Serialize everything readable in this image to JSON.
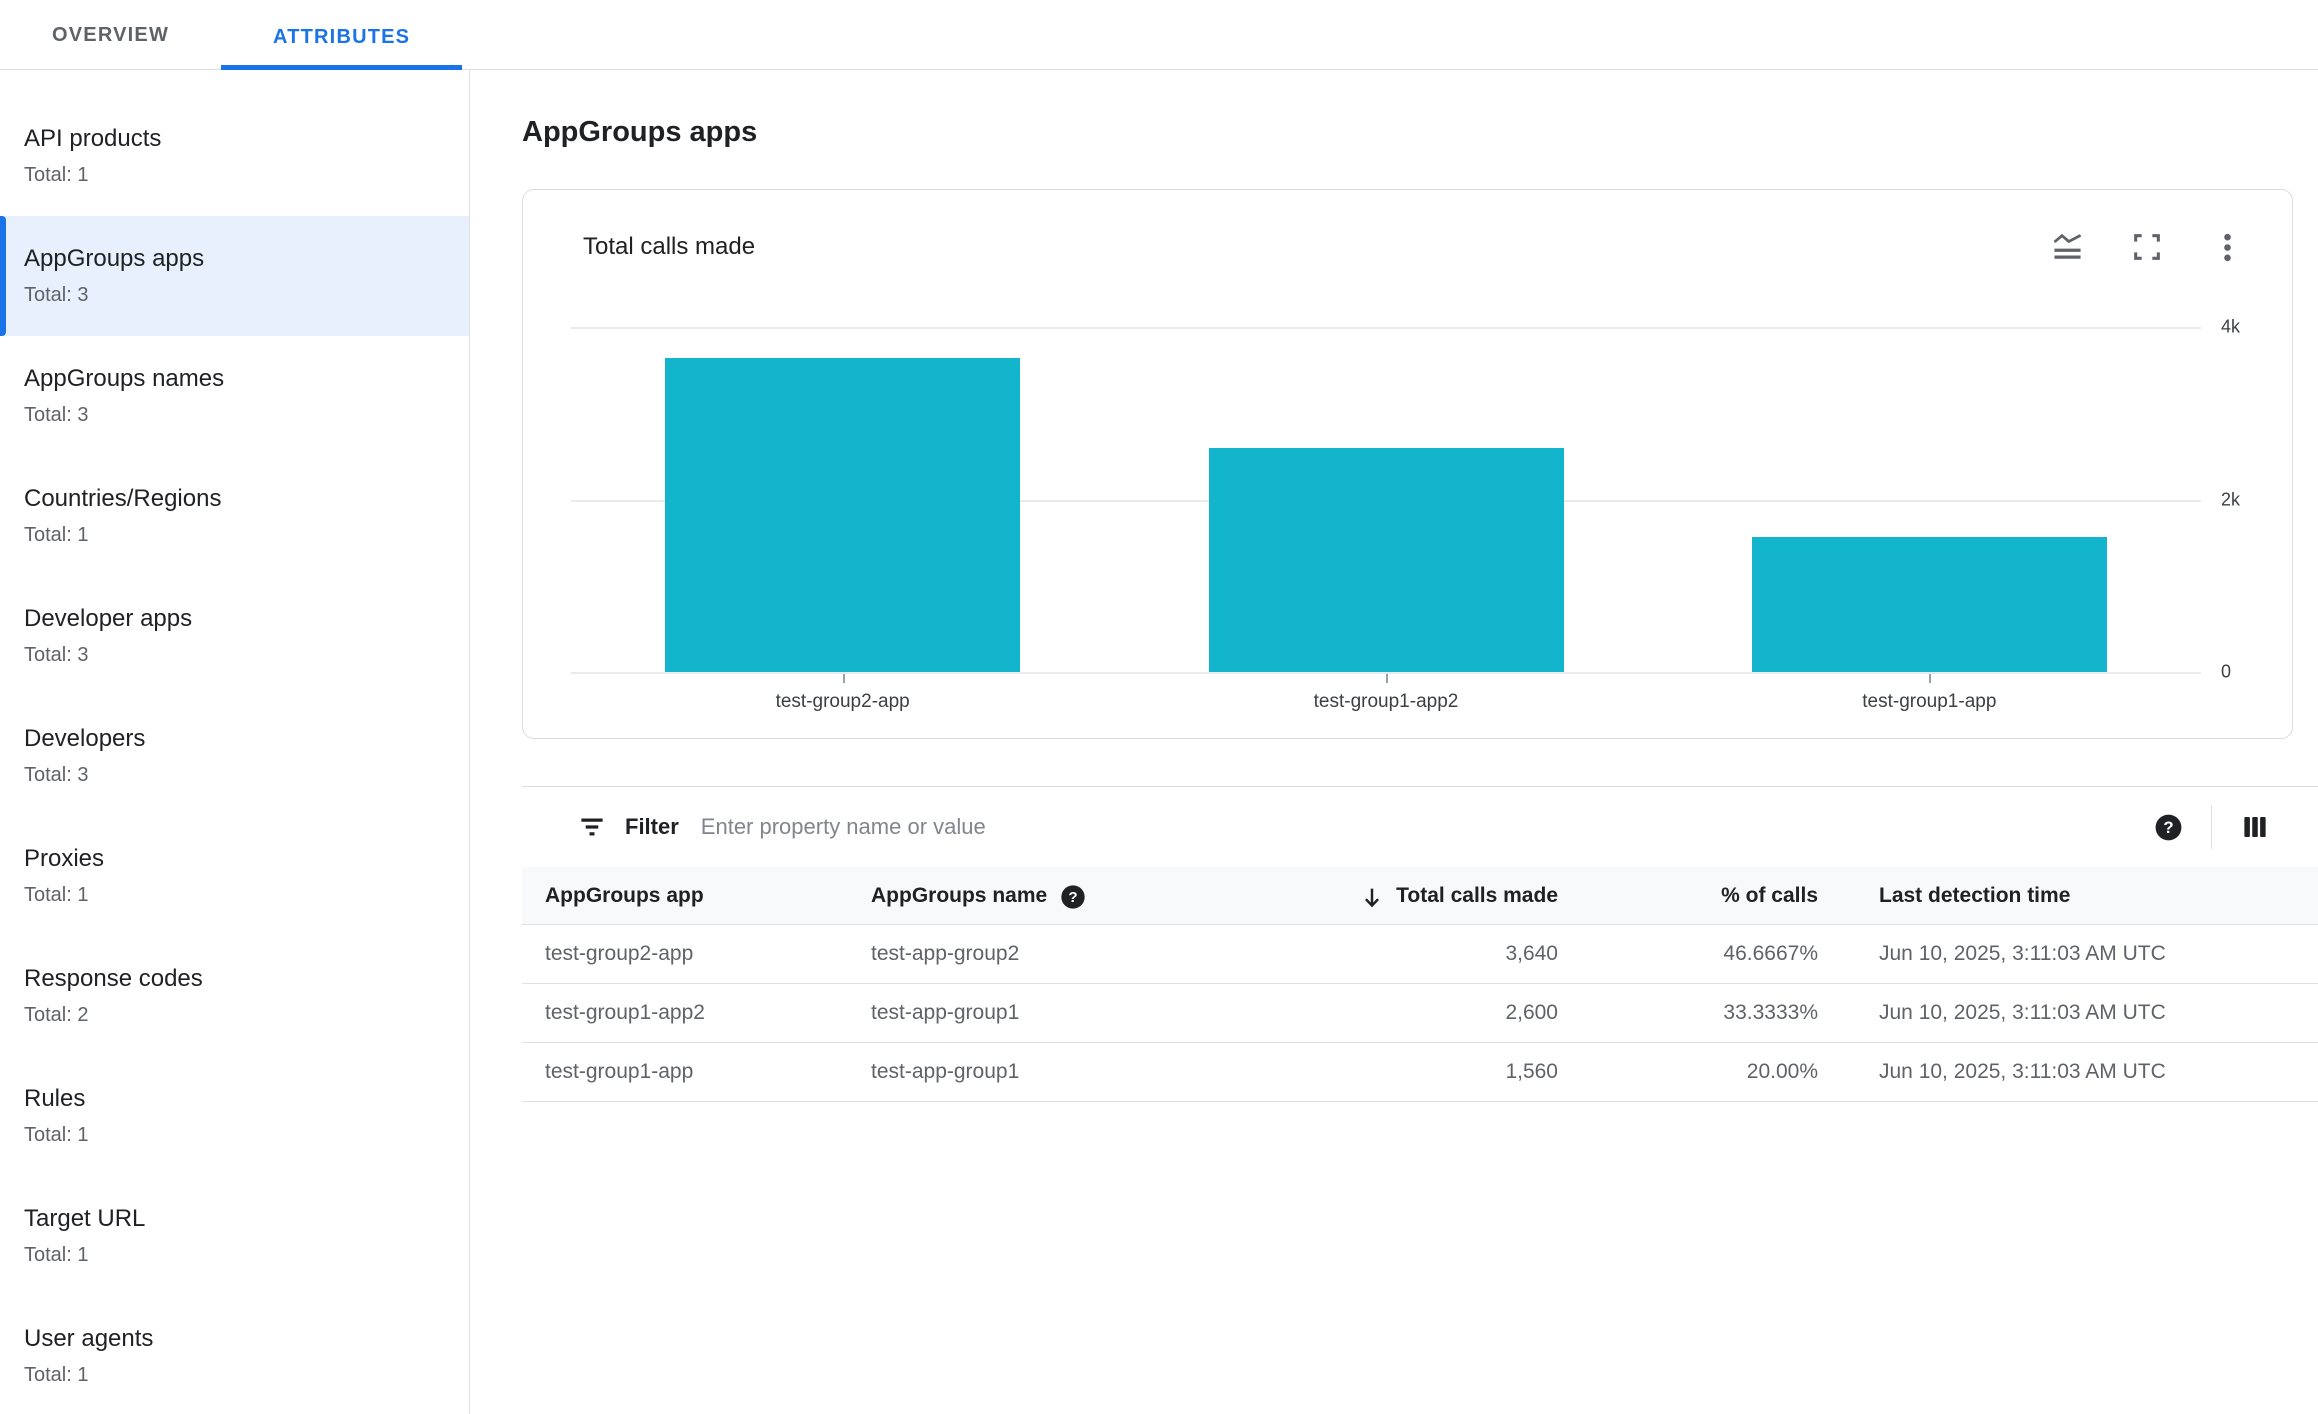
{
  "tabs": [
    {
      "label": "OVERVIEW",
      "active": false
    },
    {
      "label": "ATTRIBUTES",
      "active": true
    }
  ],
  "sidebar": {
    "items": [
      {
        "label": "API products",
        "total": "Total: 1",
        "selected": false
      },
      {
        "label": "AppGroups apps",
        "total": "Total: 3",
        "selected": true
      },
      {
        "label": "AppGroups names",
        "total": "Total: 3",
        "selected": false
      },
      {
        "label": "Countries/Regions",
        "total": "Total: 1",
        "selected": false
      },
      {
        "label": "Developer apps",
        "total": "Total: 3",
        "selected": false
      },
      {
        "label": "Developers",
        "total": "Total: 3",
        "selected": false
      },
      {
        "label": "Proxies",
        "total": "Total: 1",
        "selected": false
      },
      {
        "label": "Response codes",
        "total": "Total: 2",
        "selected": false
      },
      {
        "label": "Rules",
        "total": "Total: 1",
        "selected": false
      },
      {
        "label": "Target URL",
        "total": "Total: 1",
        "selected": false
      },
      {
        "label": "User agents",
        "total": "Total: 1",
        "selected": false
      }
    ]
  },
  "page": {
    "title": "AppGroups apps"
  },
  "card": {
    "title": "Total calls made",
    "icons": [
      "chart-type-icon",
      "fullscreen-icon",
      "more-vert-icon"
    ]
  },
  "chart_data": {
    "type": "bar",
    "title": "Total calls made",
    "categories": [
      "test-group2-app",
      "test-group1-app2",
      "test-group1-app"
    ],
    "values": [
      3640,
      2600,
      1560
    ],
    "ylim": [
      0,
      4000
    ],
    "yticks": [
      {
        "label": "4k",
        "value": 4000
      },
      {
        "label": "2k",
        "value": 2000
      },
      {
        "label": "0",
        "value": 0
      }
    ],
    "ytick_side": "right",
    "grid": true,
    "bar_color": "#12b5cb",
    "xlabel": "",
    "ylabel": ""
  },
  "filter": {
    "label": "Filter",
    "placeholder": "Enter property name or value"
  },
  "table": {
    "columns": [
      "AppGroups app",
      "AppGroups name",
      "Total calls made",
      "% of calls",
      "Last detection time"
    ],
    "sort_column": "Total calls made",
    "sort_direction": "desc",
    "rows": [
      [
        "test-group2-app",
        "test-app-group2",
        "3,640",
        "46.6667%",
        "Jun 10, 2025, 3:11:03 AM UTC"
      ],
      [
        "test-group1-app2",
        "test-app-group1",
        "2,600",
        "33.3333%",
        "Jun 10, 2025, 3:11:03 AM UTC"
      ],
      [
        "test-group1-app",
        "test-app-group1",
        "1,560",
        "20.00%",
        "Jun 10, 2025, 3:11:03 AM UTC"
      ]
    ]
  },
  "colors": {
    "accent": "#1a73e8",
    "bar": "#12b5cb",
    "selected_bg": "#e8f0fe"
  }
}
